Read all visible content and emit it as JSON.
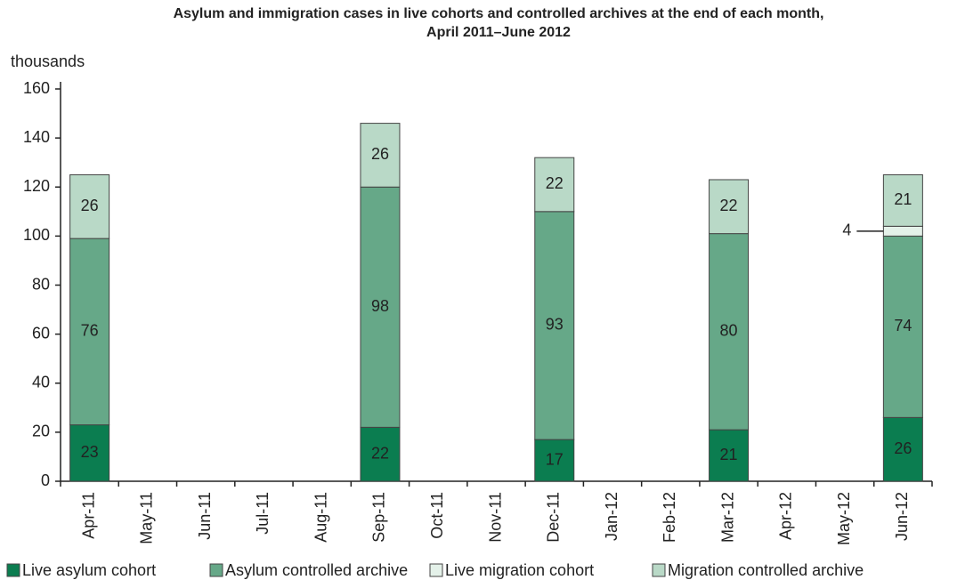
{
  "chart_data": {
    "type": "stacked_bar",
    "title": [
      "Asylum and immigration cases in live cohorts and controlled archives at the end of each month,",
      "April 2011–June 2012"
    ],
    "y_label": "thousands",
    "categories": [
      "Apr-11",
      "May-11",
      "Jun-11",
      "Jul-11",
      "Aug-11",
      "Sep-11",
      "Oct-11",
      "Nov-11",
      "Dec-11",
      "Jan-12",
      "Feb-12",
      "Mar-12",
      "Apr-12",
      "May-12",
      "Jun-12"
    ],
    "series": [
      {
        "name": "Live asylum cohort",
        "color": "#0b7d50",
        "values": [
          23,
          null,
          null,
          null,
          null,
          22,
          null,
          null,
          17,
          null,
          null,
          21,
          null,
          null,
          26
        ]
      },
      {
        "name": "Asylum controlled archive",
        "color": "#66a888",
        "values": [
          76,
          null,
          null,
          null,
          null,
          98,
          null,
          null,
          93,
          null,
          null,
          80,
          null,
          null,
          74
        ]
      },
      {
        "name": "Live migration cohort",
        "color": "#e4f1e9",
        "values": [
          null,
          null,
          null,
          null,
          null,
          null,
          null,
          null,
          null,
          null,
          null,
          null,
          null,
          null,
          4
        ]
      },
      {
        "name": "Migration controlled archive",
        "color": "#b9d9c7",
        "values": [
          26,
          null,
          null,
          null,
          null,
          26,
          null,
          null,
          22,
          null,
          null,
          22,
          null,
          null,
          21
        ]
      }
    ],
    "ylim": [
      0,
      160
    ],
    "yticks": [
      0,
      20,
      40,
      60,
      80,
      100,
      120,
      140,
      160
    ],
    "legend": "bottom"
  }
}
